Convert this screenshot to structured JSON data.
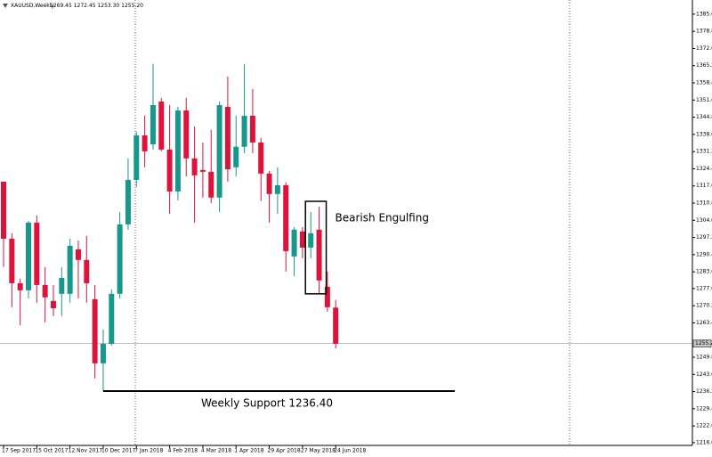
{
  "chart_data": {
    "type": "candlestick",
    "title": "XAUUSD,Weekly",
    "ohlc_text": "1269.45 1272.45 1253.30 1255.20",
    "up_color": "#17988a",
    "down_color": "#dc143c",
    "categories": [
      "17 Sep 2017",
      null,
      null,
      null,
      "15 Oct 2017",
      null,
      null,
      null,
      "12 Nov 2017",
      null,
      null,
      null,
      "10 Dec 2017",
      null,
      null,
      null,
      "7 Jan 2018",
      null,
      null,
      null,
      "4 Feb 2018",
      null,
      null,
      null,
      "4 Mar 2018",
      null,
      null,
      null,
      "1 Apr 2018",
      null,
      null,
      null,
      "29 Apr 2018",
      null,
      null,
      null,
      "27 May 2018",
      null,
      null,
      null,
      "24 Jun 2018"
    ],
    "open": [
      1319.3,
      1296.7,
      1279.1,
      1276.3,
      1303.1,
      1278.4,
      1272.1,
      1274.9,
      1274.9,
      1292.5,
      1288.3,
      1272.8,
      1247.4,
      1255.1,
      1274.9,
      1302.4,
      1320.0,
      1337.6,
      1334.1,
      1351.0,
      1332.0,
      1315.4,
      1347.5,
      1328.5,
      1323.9,
      1323.2,
      1313.0,
      1348.9,
      1325.0,
      1333.1,
      1345.4,
      1334.8,
      1322.5,
      1314.4,
      1317.9,
      1289.7,
      1299.6,
      1293.2,
      1300.3,
      1277.7,
      1269.45
    ],
    "high": [
      1319.3,
      1298.9,
      1280.9,
      1303.8,
      1305.9,
      1285.5,
      1278.4,
      1285.5,
      1296.7,
      1296.0,
      1297.8,
      1278.4,
      1260.8,
      1276.6,
      1307.3,
      1328.5,
      1339.1,
      1345.4,
      1365.9,
      1352.5,
      1349.6,
      1348.9,
      1352.5,
      1341.2,
      1334.8,
      1339.8,
      1351.0,
      1360.9,
      1345.4,
      1365.9,
      1356.0,
      1336.6,
      1323.5,
      1325.0,
      1319.0,
      1301.3,
      1301.3,
      1307.3,
      1309.4,
      1283.7,
      1272.45
    ],
    "low": [
      1285.5,
      1269.6,
      1262.5,
      1273.1,
      1271.4,
      1263.6,
      1266.1,
      1266.1,
      1271.4,
      1273.1,
      1271.4,
      1241.4,
      1236.4,
      1254.4,
      1273.1,
      1300.3,
      1317.2,
      1325.0,
      1332.0,
      1331.3,
      1306.6,
      1311.9,
      1321.4,
      1303.1,
      1313.0,
      1310.8,
      1307.3,
      1319.3,
      1321.4,
      1330.6,
      1330.6,
      1311.6,
      1303.1,
      1306.6,
      1283.7,
      1281.9,
      1289.0,
      1289.0,
      1274.9,
      1267.8,
      1253.3
    ],
    "close": [
      1296.7,
      1279.1,
      1276.3,
      1303.1,
      1278.4,
      1273.5,
      1269.2,
      1281.2,
      1293.9,
      1288.3,
      1279.1,
      1247.4,
      1255.1,
      1274.9,
      1302.4,
      1320.0,
      1337.6,
      1331.3,
      1349.6,
      1332.0,
      1315.4,
      1347.5,
      1328.5,
      1321.8,
      1323.2,
      1313.0,
      1349.6,
      1324.2,
      1333.1,
      1345.4,
      1334.8,
      1322.5,
      1314.4,
      1317.9,
      1291.8,
      1300.3,
      1293.2,
      1298.9,
      1280.2,
      1269.6,
      1255.2
    ],
    "ylim": [
      1214.9,
      1391.2
    ],
    "yticks": [
      {
        "value": 1385.6,
        "label": "1385.60"
      },
      {
        "value": 1378.8,
        "label": "1378.80"
      },
      {
        "value": 1372.0,
        "label": "1372.00"
      },
      {
        "value": 1365.2,
        "label": "1365.20"
      },
      {
        "value": 1358.4,
        "label": "1358.40"
      },
      {
        "value": 1351.6,
        "label": "1351.60"
      },
      {
        "value": 1344.8,
        "label": "1344.80"
      },
      {
        "value": 1338.0,
        "label": "1338.00"
      },
      {
        "value": 1331.2,
        "label": "1331.20"
      },
      {
        "value": 1324.4,
        "label": "1324.40"
      },
      {
        "value": 1317.6,
        "label": "1317.60"
      },
      {
        "value": 1310.8,
        "label": "1310.80"
      },
      {
        "value": 1304.0,
        "label": "1304.00"
      },
      {
        "value": 1297.2,
        "label": "1297.20"
      },
      {
        "value": 1290.4,
        "label": "1290.40"
      },
      {
        "value": 1283.6,
        "label": "1283.60"
      },
      {
        "value": 1277.0,
        "label": "1277.00"
      },
      {
        "value": 1270.2,
        "label": "1270.20"
      },
      {
        "value": 1263.4,
        "label": "1263.40"
      },
      {
        "value": 1249.8,
        "label": "1249.80"
      },
      {
        "value": 1243.0,
        "label": "1243.00"
      },
      {
        "value": 1236.2,
        "label": "1236.20"
      },
      {
        "value": 1229.4,
        "label": "1229.40"
      },
      {
        "value": 1222.6,
        "label": "1222.60"
      },
      {
        "value": 1216.0,
        "label": "1216.00"
      }
    ],
    "current_price": {
      "value": 1255.2,
      "label": "1255.20"
    },
    "pattern_label": "Bearish Engulfing",
    "support": {
      "value": 1236.4,
      "label": "Weekly Support 1236.40"
    }
  }
}
